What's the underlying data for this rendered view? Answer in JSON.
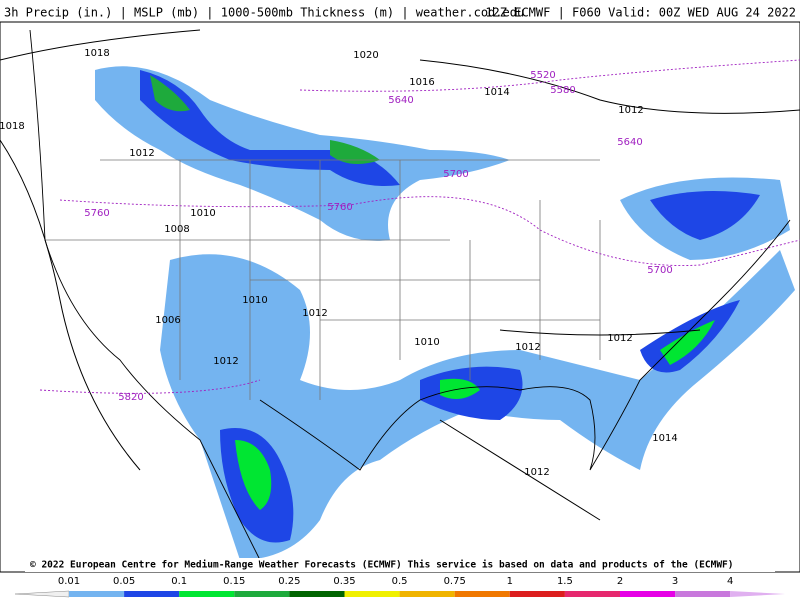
{
  "header": {
    "left": "3h Precip (in.) | MSLP (mb) | 1000-500mb Thickness (m) | weather.cod.edu",
    "right": "12Z ECMWF | F060 Valid: 00Z WED AUG 24 2022"
  },
  "isobar_labels": [
    "1018",
    "1020",
    "1016",
    "1014",
    "1012",
    "1018",
    "1012",
    "1010",
    "1008",
    "1010",
    "1012",
    "1006",
    "1010",
    "1012",
    "1012",
    "1012",
    "1014",
    "1012"
  ],
  "thickness_labels": [
    "5520",
    "5580",
    "5640",
    "5640",
    "5700",
    "5760",
    "5760",
    "5700",
    "5820"
  ],
  "copyright": "© 2022 European Centre for Medium-Range Weather Forecasts (ECMWF)  This service is based on data and products of the (ECMWF)",
  "colorbar": {
    "labels": [
      "0.01",
      "0.05",
      "0.1",
      "0.15",
      "0.25",
      "0.35",
      "0.5",
      "0.75",
      "1",
      "1.5",
      "2",
      "3",
      "4"
    ],
    "colors": [
      "#74b4f0",
      "#1e46e6",
      "#00e632",
      "#1eaa3c",
      "#006400",
      "#f0f000",
      "#f0b400",
      "#f07800",
      "#dc1e1e",
      "#e6286e",
      "#e600e6",
      "#c878dc",
      "#e0b0f0"
    ]
  }
}
